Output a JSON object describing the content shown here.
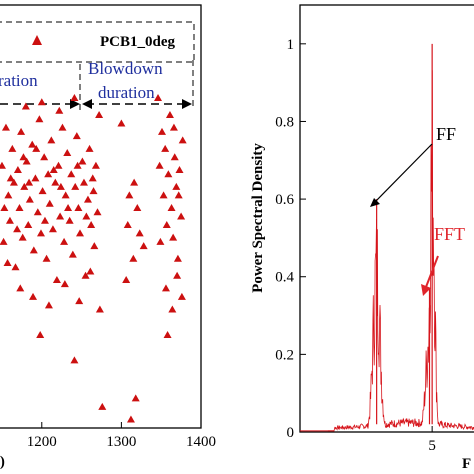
{
  "chart_data": [
    {
      "type": "scatter",
      "xlabel_visible_fragment": "s)",
      "x_ticks": [
        "1200",
        "1300",
        "1400"
      ],
      "xlim": [
        1145,
        1400
      ],
      "ylim": [
        0,
        1
      ],
      "legend": {
        "label": "PCB1_0deg",
        "placement": "top-right",
        "marker": "triangle",
        "color": "#cc1010"
      },
      "annotations": {
        "left_duration": "ration",
        "blowdown_line1": "Blowdown",
        "blowdown_line2": "duration"
      },
      "series": [
        {
          "name": "PCB1_0deg",
          "points": [
            [
              1150,
              0.62
            ],
            [
              1152,
              0.44
            ],
            [
              1155,
              0.71
            ],
            [
              1158,
              0.55
            ],
            [
              1160,
              0.49
            ],
            [
              1163,
              0.66
            ],
            [
              1165,
              0.58
            ],
            [
              1167,
              0.38
            ],
            [
              1170,
              0.61
            ],
            [
              1172,
              0.52
            ],
            [
              1174,
              0.7
            ],
            [
              1176,
              0.45
            ],
            [
              1178,
              0.57
            ],
            [
              1181,
              0.63
            ],
            [
              1183,
              0.48
            ],
            [
              1185,
              0.54
            ],
            [
              1188,
              0.67
            ],
            [
              1190,
              0.42
            ],
            [
              1192,
              0.59
            ],
            [
              1195,
              0.51
            ],
            [
              1197,
              0.73
            ],
            [
              1199,
              0.46
            ],
            [
              1201,
              0.56
            ],
            [
              1203,
              0.64
            ],
            [
              1206,
              0.4
            ],
            [
              1208,
              0.6
            ],
            [
              1210,
              0.53
            ],
            [
              1212,
              0.68
            ],
            [
              1214,
              0.47
            ],
            [
              1217,
              0.58
            ],
            [
              1219,
              0.35
            ],
            [
              1221,
              0.62
            ],
            [
              1223,
              0.5
            ],
            [
              1226,
              0.71
            ],
            [
              1228,
              0.44
            ],
            [
              1230,
              0.55
            ],
            [
              1232,
              0.65
            ],
            [
              1235,
              0.49
            ],
            [
              1237,
              0.6
            ],
            [
              1239,
              0.41
            ],
            [
              1242,
              0.57
            ],
            [
              1244,
              0.69
            ],
            [
              1246,
              0.52
            ],
            [
              1248,
              0.46
            ],
            [
              1251,
              0.63
            ],
            [
              1253,
              0.58
            ],
            [
              1255,
              0.36
            ],
            [
              1258,
              0.54
            ],
            [
              1260,
              0.66
            ],
            [
              1262,
              0.48
            ],
            [
              1264,
              0.59
            ],
            [
              1266,
              0.43
            ],
            [
              1268,
              0.62
            ],
            [
              1270,
              0.51
            ],
            [
              1272,
              0.74
            ],
            [
              1273,
              0.28
            ],
            [
              1153,
              0.52
            ],
            [
              1161,
              0.59
            ],
            [
              1169,
              0.47
            ],
            [
              1177,
              0.64
            ],
            [
              1184,
              0.58
            ],
            [
              1193,
              0.66
            ],
            [
              1204,
              0.49
            ],
            [
              1215,
              0.61
            ],
            [
              1224,
              0.57
            ],
            [
              1233,
              0.52
            ],
            [
              1245,
              0.62
            ],
            [
              1256,
              0.5
            ],
            [
              1265,
              0.56
            ],
            [
              1157,
              0.39
            ],
            [
              1173,
              0.33
            ],
            [
              1189,
              0.31
            ],
            [
              1209,
              0.29
            ],
            [
              1229,
              0.34
            ],
            [
              1247,
              0.3
            ],
            [
              1261,
              0.37
            ],
            [
              1180,
              0.76
            ],
            [
              1200,
              0.77
            ],
            [
              1222,
              0.75
            ],
            [
              1241,
              0.78
            ],
            [
              1198,
              0.22
            ],
            [
              1241,
              0.16
            ],
            [
              1276,
              0.05
            ],
            [
              1318,
              0.07
            ],
            [
              1312,
              0.02
            ],
            [
              1300,
              0.72
            ],
            [
              1308,
              0.48
            ],
            [
              1310,
              0.55
            ],
            [
              1315,
              0.4
            ],
            [
              1320,
              0.52
            ],
            [
              1323,
              0.46
            ],
            [
              1316,
              0.58
            ],
            [
              1306,
              0.35
            ],
            [
              1328,
              0.43
            ],
            [
              1346,
              0.78
            ],
            [
              1348,
              0.62
            ],
            [
              1351,
              0.7
            ],
            [
              1353,
              0.55
            ],
            [
              1355,
              0.66
            ],
            [
              1357,
              0.48
            ],
            [
              1359,
              0.6
            ],
            [
              1361,
              0.74
            ],
            [
              1363,
              0.52
            ],
            [
              1365,
              0.45
            ],
            [
              1367,
              0.64
            ],
            [
              1369,
              0.57
            ],
            [
              1371,
              0.4
            ],
            [
              1373,
              0.61
            ],
            [
              1375,
              0.5
            ],
            [
              1377,
              0.68
            ],
            [
              1356,
              0.33
            ],
            [
              1364,
              0.28
            ],
            [
              1370,
              0.36
            ],
            [
              1358,
              0.22
            ],
            [
              1376,
              0.31
            ],
            [
              1349,
              0.44
            ],
            [
              1366,
              0.71
            ],
            [
              1372,
              0.55
            ]
          ]
        }
      ]
    },
    {
      "type": "line",
      "ylabel": "Power Spectral Density",
      "xlabel_visible_fragment": "F",
      "y_ticks": [
        "0",
        "0.2",
        "0.4",
        "0.6",
        "0.8",
        "1"
      ],
      "x_ticks": [
        "5"
      ],
      "xlim": [
        0,
        7
      ],
      "ylim": [
        0,
        1.1
      ],
      "annotations": {
        "ff_label": "FF",
        "fft_label": "FFT"
      },
      "series": [
        {
          "name": "",
          "peaks": [
            {
              "x": 2.9,
              "y": 0.6
            },
            {
              "x": 5.0,
              "y": 1.0
            },
            {
              "x": 4.9,
              "y": 0.37
            }
          ]
        }
      ]
    }
  ]
}
